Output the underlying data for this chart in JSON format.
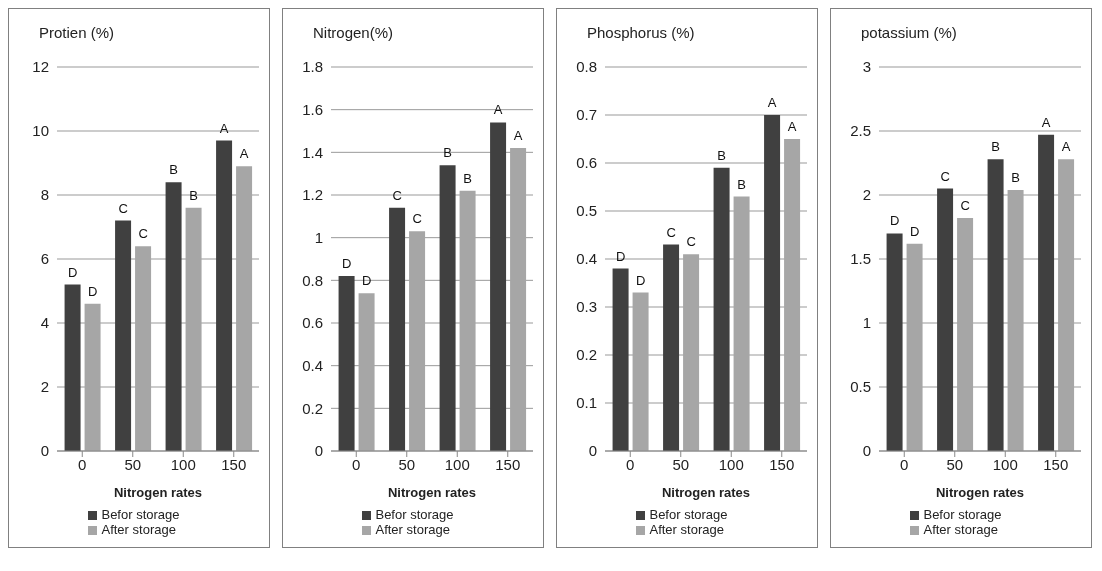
{
  "chart_data": [
    {
      "type": "bar",
      "title": "Protien (%)",
      "xlabel": "Nitrogen rates",
      "categories": [
        "0",
        "50",
        "100",
        "150"
      ],
      "ylim": [
        0,
        12
      ],
      "yticks": [
        0,
        2,
        4,
        6,
        8,
        10,
        12
      ],
      "grid": "y",
      "legend": "bottom",
      "series": [
        {
          "name": "Befor storage",
          "color": "#404040",
          "values": [
            5.2,
            7.2,
            8.4,
            9.7
          ],
          "value_labels": [
            "D",
            "C",
            "B",
            "A"
          ]
        },
        {
          "name": "After storage",
          "color": "#a6a6a6",
          "values": [
            4.6,
            6.4,
            7.6,
            8.9
          ],
          "value_labels": [
            "D",
            "C",
            "B",
            "A"
          ]
        }
      ]
    },
    {
      "type": "bar",
      "title": "Nitrogen(%)",
      "xlabel": "Nitrogen rates",
      "categories": [
        "0",
        "50",
        "100",
        "150"
      ],
      "ylim": [
        0,
        1.8
      ],
      "yticks": [
        0,
        0.2,
        0.4,
        0.6,
        0.8,
        1,
        1.2,
        1.4,
        1.6,
        1.8
      ],
      "grid": "y",
      "legend": "bottom",
      "series": [
        {
          "name": "Befor storage",
          "color": "#404040",
          "values": [
            0.82,
            1.14,
            1.34,
            1.54
          ],
          "value_labels": [
            "D",
            "C",
            "B",
            "A"
          ]
        },
        {
          "name": "After storage",
          "color": "#a6a6a6",
          "values": [
            0.74,
            1.03,
            1.22,
            1.42
          ],
          "value_labels": [
            "D",
            "C",
            "B",
            "A"
          ]
        }
      ]
    },
    {
      "type": "bar",
      "title": "Phosphorus (%)",
      "xlabel": "Nitrogen rates",
      "categories": [
        "0",
        "50",
        "100",
        "150"
      ],
      "ylim": [
        0,
        0.8
      ],
      "yticks": [
        0,
        0.1,
        0.2,
        0.3,
        0.4,
        0.5,
        0.6,
        0.7,
        0.8
      ],
      "grid": "y",
      "legend": "bottom",
      "series": [
        {
          "name": "Befor storage",
          "color": "#404040",
          "values": [
            0.38,
            0.43,
            0.59,
            0.7
          ],
          "value_labels": [
            "D",
            "C",
            "B",
            "A"
          ]
        },
        {
          "name": "After storage",
          "color": "#a6a6a6",
          "values": [
            0.33,
            0.41,
            0.53,
            0.65
          ],
          "value_labels": [
            "D",
            "C",
            "B",
            "A"
          ]
        }
      ]
    },
    {
      "type": "bar",
      "title": "potassium (%)",
      "xlabel": "Nitrogen rates",
      "categories": [
        "0",
        "50",
        "100",
        "150"
      ],
      "ylim": [
        0,
        3
      ],
      "yticks": [
        0,
        0.5,
        1,
        1.5,
        2,
        2.5,
        3
      ],
      "grid": "y",
      "legend": "bottom",
      "series": [
        {
          "name": "Befor storage",
          "color": "#404040",
          "values": [
            1.7,
            2.05,
            2.28,
            2.47
          ],
          "value_labels": [
            "D",
            "C",
            "B",
            "A"
          ]
        },
        {
          "name": "After storage",
          "color": "#a6a6a6",
          "values": [
            1.62,
            1.82,
            2.04,
            2.28
          ],
          "value_labels": [
            "D",
            "C",
            "B",
            "A"
          ]
        }
      ]
    }
  ]
}
